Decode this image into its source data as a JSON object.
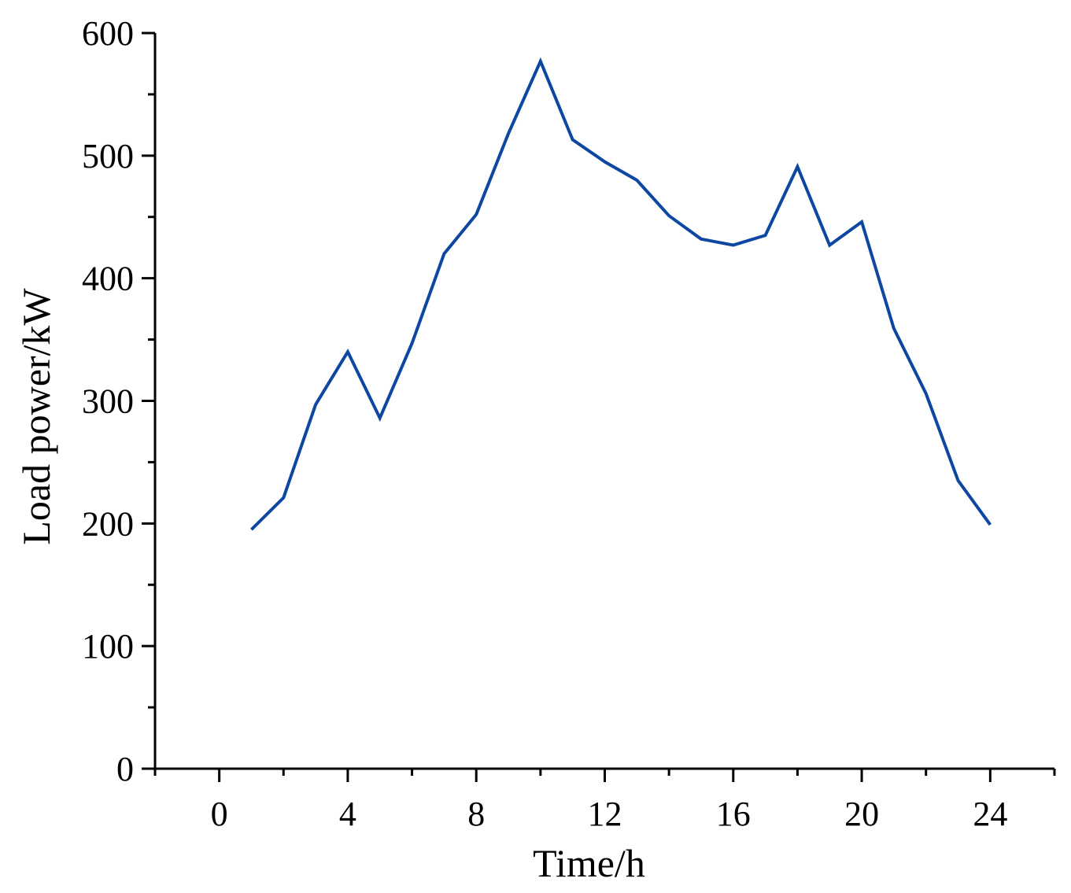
{
  "chart_data": {
    "type": "line",
    "title": "",
    "xlabel": "Time/h",
    "ylabel": "Load power/kW",
    "xlim": [
      -2,
      26
    ],
    "ylim": [
      0,
      600
    ],
    "x_ticks": [
      0,
      4,
      8,
      12,
      16,
      20,
      24
    ],
    "x_tick_labels": [
      "0",
      "4",
      "8",
      "12",
      "16",
      "20",
      "24"
    ],
    "x_minor_ticks": [
      -2,
      2,
      6,
      10,
      14,
      18,
      22,
      26
    ],
    "y_ticks": [
      0,
      100,
      200,
      300,
      400,
      500,
      600
    ],
    "y_tick_labels": [
      "0",
      "100",
      "200",
      "300",
      "400",
      "500",
      "600"
    ],
    "y_minor_ticks": [
      50,
      150,
      250,
      350,
      450,
      550
    ],
    "grid": false,
    "legend": "none",
    "series": [
      {
        "color": "#0d47a1",
        "x": [
          1,
          2,
          3,
          4,
          5,
          6,
          7,
          8,
          9,
          10,
          11,
          12,
          13,
          14,
          15,
          16,
          17,
          18,
          19,
          20,
          21,
          22,
          23,
          24
        ],
        "values": [
          195,
          221,
          297,
          340,
          286,
          347,
          420,
          452,
          518,
          577,
          513,
          495,
          480,
          451,
          432,
          427,
          435,
          491,
          427,
          446,
          359,
          306,
          235,
          199
        ]
      }
    ]
  }
}
